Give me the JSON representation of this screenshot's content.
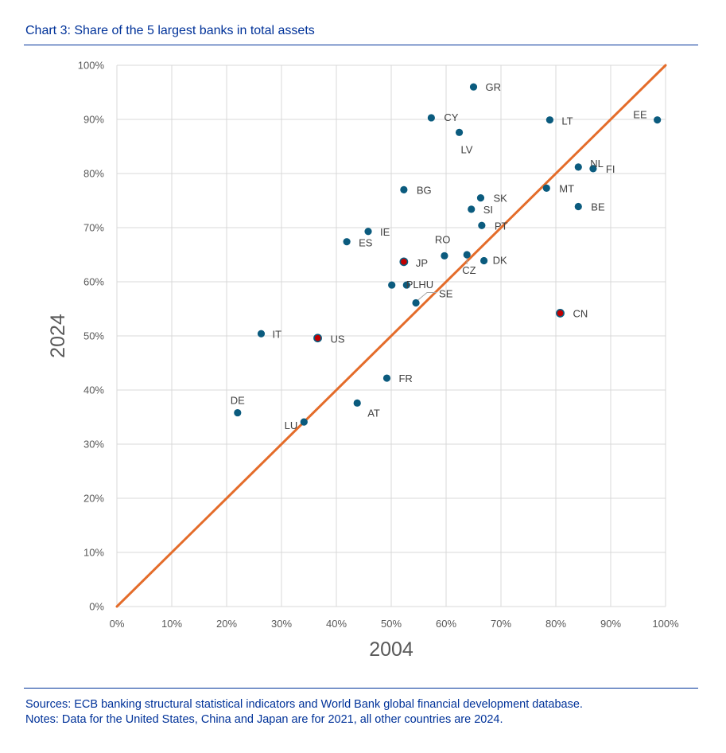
{
  "title": "Chart 3: Share of the 5 largest banks in total assets",
  "notes": {
    "sources": "Sources: ECB banking structural statistical indicators and World Bank global financial development database.",
    "notes": "Notes: Data for the United States, China and Japan are for 2021, all other countries are 2024."
  },
  "colors": {
    "point": "#0B5B7E",
    "highlight": "#C00000",
    "diagonal": "#E46C2A",
    "grid": "#D9D9D9",
    "text": "#003299"
  },
  "chart_data": {
    "type": "scatter",
    "xlabel": "2004",
    "ylabel": "2024",
    "xlim": [
      0,
      100
    ],
    "ylim": [
      0,
      100
    ],
    "x_ticks": [
      "0%",
      "10%",
      "20%",
      "30%",
      "40%",
      "50%",
      "60%",
      "70%",
      "80%",
      "90%",
      "100%"
    ],
    "y_ticks": [
      "0%",
      "10%",
      "20%",
      "30%",
      "40%",
      "50%",
      "60%",
      "70%",
      "80%",
      "90%",
      "100%"
    ],
    "grid": true,
    "reference_line": {
      "label": "45-degree line",
      "from": [
        0,
        0
      ],
      "to": [
        100,
        100
      ]
    },
    "points": [
      {
        "label": "GR",
        "x": 65.0,
        "y": 96.0,
        "highlight": false
      },
      {
        "label": "CY",
        "x": 57.3,
        "y": 90.3,
        "highlight": false
      },
      {
        "label": "LV",
        "x": 62.4,
        "y": 87.6,
        "highlight": false
      },
      {
        "label": "LT",
        "x": 78.9,
        "y": 89.9,
        "highlight": false
      },
      {
        "label": "EE",
        "x": 98.5,
        "y": 89.9,
        "highlight": false
      },
      {
        "label": "NL",
        "x": 84.1,
        "y": 81.2,
        "highlight": false
      },
      {
        "label": "FI",
        "x": 86.8,
        "y": 80.9,
        "highlight": false
      },
      {
        "label": "BG",
        "x": 52.3,
        "y": 77.0,
        "highlight": false
      },
      {
        "label": "MT",
        "x": 78.3,
        "y": 77.3,
        "highlight": false
      },
      {
        "label": "SK",
        "x": 66.3,
        "y": 75.5,
        "highlight": false
      },
      {
        "label": "SI",
        "x": 64.6,
        "y": 73.4,
        "highlight": false
      },
      {
        "label": "BE",
        "x": 84.1,
        "y": 73.9,
        "highlight": false
      },
      {
        "label": "PT",
        "x": 66.5,
        "y": 70.4,
        "highlight": false
      },
      {
        "label": "IE",
        "x": 45.8,
        "y": 69.3,
        "highlight": false
      },
      {
        "label": "ES",
        "x": 41.9,
        "y": 67.4,
        "highlight": false
      },
      {
        "label": "RO",
        "x": 59.7,
        "y": 64.8,
        "highlight": false
      },
      {
        "label": "CZ",
        "x": 63.8,
        "y": 65.0,
        "highlight": false
      },
      {
        "label": "DK",
        "x": 66.9,
        "y": 63.9,
        "highlight": false
      },
      {
        "label": "JP",
        "x": 52.3,
        "y": 63.7,
        "highlight": true
      },
      {
        "label": "PL",
        "x": 50.1,
        "y": 59.4,
        "highlight": false
      },
      {
        "label": "HU",
        "x": 52.8,
        "y": 59.4,
        "highlight": false
      },
      {
        "label": "SE",
        "x": 54.5,
        "y": 56.1,
        "highlight": false
      },
      {
        "label": "CN",
        "x": 80.8,
        "y": 54.2,
        "highlight": true
      },
      {
        "label": "IT",
        "x": 26.3,
        "y": 50.4,
        "highlight": false
      },
      {
        "label": "US",
        "x": 36.6,
        "y": 49.6,
        "highlight": true
      },
      {
        "label": "FR",
        "x": 49.2,
        "y": 42.2,
        "highlight": false
      },
      {
        "label": "DE",
        "x": 22.0,
        "y": 35.8,
        "highlight": false
      },
      {
        "label": "AT",
        "x": 43.8,
        "y": 37.6,
        "highlight": false
      },
      {
        "label": "LU",
        "x": 34.1,
        "y": 34.1,
        "highlight": false
      }
    ]
  }
}
